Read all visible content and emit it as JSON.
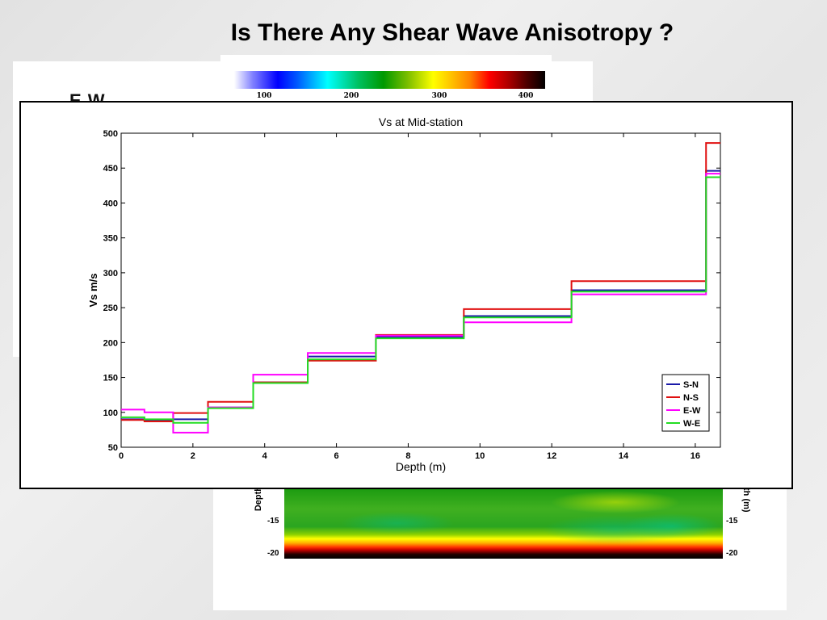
{
  "slide": {
    "title": "Is There Any Shear Wave Anisotropy ?",
    "background_text": "E W"
  },
  "colorbar": {
    "ticks": [
      "100",
      "200",
      "300",
      "400"
    ]
  },
  "section_plot": {
    "left_axis_label": "Depth",
    "right_axis_label": "th (m)",
    "left_ticks": [
      "-15",
      "-20"
    ],
    "right_ticks": [
      "-15",
      "-20"
    ]
  },
  "chart_data": {
    "type": "line",
    "title": "Vs at Mid-station",
    "xlabel": "Depth (m)",
    "ylabel": "Vs m/s",
    "xlim": [
      0,
      16.7
    ],
    "ylim": [
      50,
      500
    ],
    "xticks": [
      0,
      2,
      4,
      6,
      8,
      10,
      12,
      14,
      16
    ],
    "yticks": [
      50,
      100,
      150,
      200,
      250,
      300,
      350,
      400,
      450,
      500
    ],
    "legend_position": "bottom-right",
    "step": true,
    "series": [
      {
        "name": "S-N",
        "color": "#1a1aa8",
        "x": [
          0,
          0.65,
          1.45,
          2.42,
          3.68,
          5.2,
          7.1,
          9.55,
          12.55,
          16.3,
          16.7
        ],
        "y": [
          90,
          88,
          90,
          107,
          143,
          180,
          208,
          238,
          275,
          446,
          446
        ]
      },
      {
        "name": "N-S",
        "color": "#e01010",
        "x": [
          0,
          0.65,
          1.45,
          2.42,
          3.68,
          5.2,
          7.1,
          9.55,
          12.55,
          16.3,
          16.7
        ],
        "y": [
          89,
          87,
          99,
          115,
          143,
          174,
          211,
          248,
          288,
          486,
          486
        ]
      },
      {
        "name": "E-W",
        "color": "#ff00ff",
        "x": [
          0,
          0.65,
          1.45,
          2.42,
          3.68,
          5.2,
          7.1,
          9.55,
          12.55,
          16.3,
          16.7
        ],
        "y": [
          104,
          100,
          71,
          107,
          154,
          185,
          210,
          229,
          269,
          442,
          442
        ]
      },
      {
        "name": "W-E",
        "color": "#22dd22",
        "x": [
          0,
          0.65,
          1.45,
          2.42,
          3.68,
          5.2,
          7.1,
          9.55,
          12.55,
          16.3,
          16.7
        ],
        "y": [
          93,
          90,
          85,
          106,
          142,
          176,
          206,
          236,
          273,
          437,
          437
        ]
      }
    ]
  }
}
